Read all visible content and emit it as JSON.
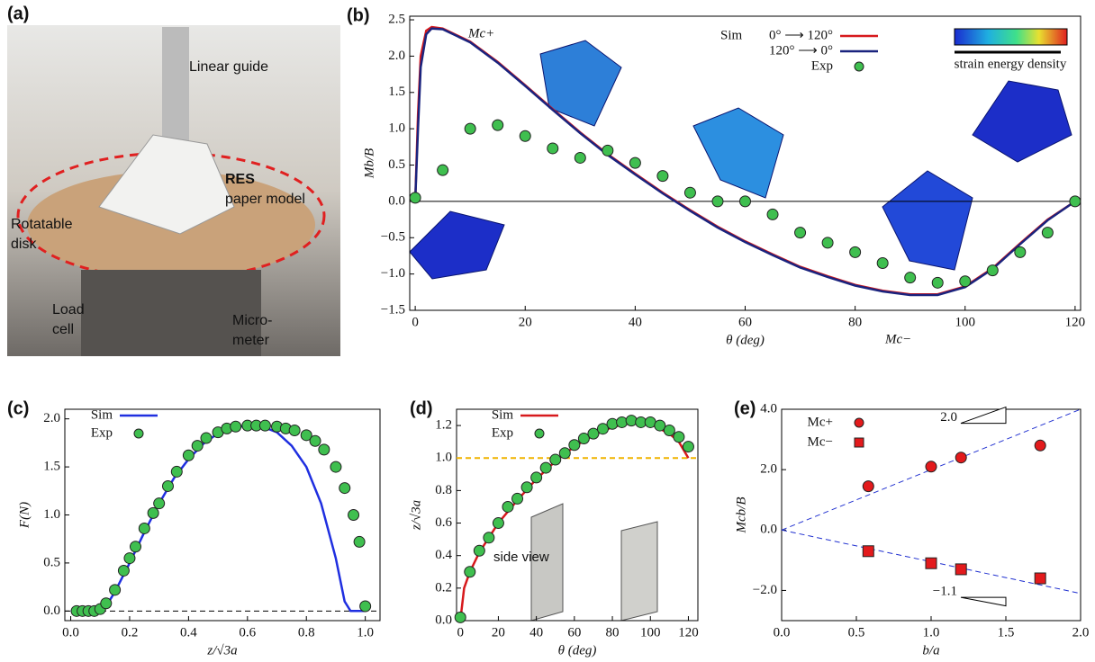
{
  "photo": {
    "panel": "(a)",
    "labels": [
      "Linear guide",
      "RES",
      "paper model",
      "Rotatable",
      "disk",
      "Load",
      "cell",
      "Micro-",
      "meter"
    ]
  },
  "chart_data": [
    {
      "type": "line",
      "panel": "(b)",
      "xlabel": "θ (deg)",
      "ylabel": "Mb/B",
      "xlim": [
        -1,
        121
      ],
      "ylim": [
        -1.5,
        2.55
      ],
      "xticks": [
        0,
        20,
        40,
        60,
        80,
        100,
        120
      ],
      "yticks": [
        {
          "value": -1.5,
          "label": "−1.5"
        },
        {
          "value": -1,
          "label": "−1.0"
        },
        {
          "value": -0.5,
          "label": "−0.5"
        },
        {
          "value": 0,
          "label": "0.0"
        },
        {
          "value": 0.5,
          "label": "0.5"
        },
        {
          "value": 1,
          "label": "1.0"
        },
        {
          "value": 1.5,
          "label": "1.5"
        },
        {
          "value": 2,
          "label": "2.0"
        },
        {
          "value": 2.5,
          "label": "2.5"
        }
      ],
      "hline": {
        "value": 0,
        "color": "#000000",
        "style": "solid"
      },
      "sim_label": "Sim",
      "colorbar_label": "strain energy density",
      "annotations": [
        "Mc+",
        "Mc−"
      ],
      "series": [
        {
          "name": "0° ⟶ 120°",
          "color": "#d7191c",
          "x": [
            0,
            0.5,
            1,
            2,
            3,
            5,
            10,
            15,
            20,
            25,
            30,
            35,
            40,
            45,
            50,
            55,
            60,
            65,
            70,
            75,
            80,
            85,
            90,
            95,
            100,
            105,
            110,
            115,
            120
          ],
          "values": [
            0,
            1.2,
            2.0,
            2.35,
            2.4,
            2.38,
            2.2,
            1.92,
            1.6,
            1.27,
            0.95,
            0.65,
            0.38,
            0.12,
            -0.12,
            -0.35,
            -0.55,
            -0.73,
            -0.9,
            -1.03,
            -1.15,
            -1.23,
            -1.28,
            -1.28,
            -1.17,
            -0.92,
            -0.58,
            -0.25,
            0
          ]
        },
        {
          "name": "120° ⟶ 0°",
          "color": "#1a237e",
          "x": [
            0,
            0.5,
            1,
            2,
            3,
            5,
            10,
            15,
            20,
            25,
            30,
            35,
            40,
            45,
            50,
            55,
            60,
            65,
            70,
            75,
            80,
            85,
            90,
            95,
            100,
            105,
            110,
            115,
            120
          ],
          "values": [
            0,
            1.0,
            1.85,
            2.3,
            2.38,
            2.37,
            2.19,
            1.91,
            1.59,
            1.26,
            0.94,
            0.64,
            0.37,
            0.11,
            -0.13,
            -0.36,
            -0.56,
            -0.74,
            -0.91,
            -1.04,
            -1.16,
            -1.24,
            -1.29,
            -1.29,
            -1.18,
            -0.93,
            -0.59,
            -0.26,
            0
          ]
        },
        {
          "name": "Exp",
          "color": "#3fbf4f",
          "marker": "circle",
          "x": [
            0,
            5,
            10,
            15,
            20,
            25,
            30,
            35,
            40,
            45,
            50,
            55,
            60,
            65,
            70,
            75,
            80,
            85,
            90,
            95,
            100,
            105,
            110,
            115,
            120
          ],
          "values": [
            0.05,
            0.43,
            1.0,
            1.05,
            0.9,
            0.73,
            0.6,
            0.7,
            0.53,
            0.35,
            0.12,
            0.0,
            0.0,
            -0.18,
            -0.43,
            -0.57,
            -0.7,
            -0.85,
            -1.05,
            -1.12,
            -1.1,
            -0.95,
            -0.7,
            -0.43,
            0.0
          ]
        }
      ]
    },
    {
      "type": "line",
      "panel": "(c)",
      "xlabel": "z/√3a",
      "ylabel": "F(N)",
      "xlim": [
        -0.02,
        1.05
      ],
      "ylim": [
        -0.1,
        2.1
      ],
      "xticks": [
        {
          "value": 0,
          "label": "0.0"
        },
        0.2,
        0.4,
        0.6,
        0.8,
        {
          "value": 1,
          "label": "1.0"
        }
      ],
      "yticks": [
        {
          "value": 0,
          "label": "0.0"
        },
        0.5,
        {
          "value": 1,
          "label": "1.0"
        },
        1.5,
        {
          "value": 2,
          "label": "2.0"
        }
      ],
      "hline": {
        "value": 0,
        "color": "#000000",
        "style": "dashed"
      },
      "series": [
        {
          "name": "Sim",
          "color": "#1f2fe0",
          "x": [
            0,
            0.1,
            0.12,
            0.15,
            0.2,
            0.25,
            0.3,
            0.35,
            0.4,
            0.45,
            0.5,
            0.55,
            0.6,
            0.65,
            0.7,
            0.75,
            0.8,
            0.85,
            0.9,
            0.93,
            0.95,
            1.0
          ],
          "values": [
            0,
            0,
            0.05,
            0.2,
            0.5,
            0.82,
            1.12,
            1.38,
            1.58,
            1.74,
            1.85,
            1.91,
            1.93,
            1.92,
            1.86,
            1.72,
            1.5,
            1.12,
            0.55,
            0.1,
            0,
            0
          ]
        },
        {
          "name": "Exp",
          "color": "#3fbf4f",
          "marker": "circle",
          "x": [
            0.02,
            0.04,
            0.06,
            0.08,
            0.1,
            0.12,
            0.15,
            0.18,
            0.2,
            0.22,
            0.25,
            0.28,
            0.3,
            0.33,
            0.36,
            0.4,
            0.43,
            0.46,
            0.5,
            0.53,
            0.56,
            0.6,
            0.63,
            0.66,
            0.7,
            0.73,
            0.76,
            0.8,
            0.83,
            0.86,
            0.9,
            0.93,
            0.96,
            0.98,
            1.0
          ],
          "values": [
            0,
            0,
            0,
            0,
            0.02,
            0.08,
            0.22,
            0.42,
            0.55,
            0.67,
            0.86,
            1.02,
            1.12,
            1.3,
            1.45,
            1.62,
            1.72,
            1.8,
            1.86,
            1.9,
            1.92,
            1.93,
            1.93,
            1.93,
            1.92,
            1.9,
            1.88,
            1.83,
            1.77,
            1.68,
            1.5,
            1.28,
            1.0,
            0.72,
            0.05
          ]
        }
      ]
    },
    {
      "type": "line",
      "panel": "(d)",
      "xlabel": "θ (deg)",
      "ylabel": "z/√3a",
      "xlim": [
        -2,
        125
      ],
      "ylim": [
        0,
        1.3
      ],
      "xticks": [
        0,
        20,
        40,
        60,
        80,
        100,
        120
      ],
      "yticks": [
        {
          "value": 0,
          "label": "0.0"
        },
        0.2,
        0.4,
        0.6,
        0.8,
        {
          "value": 1,
          "label": "1.0"
        },
        1.2
      ],
      "hline": {
        "value": 1,
        "color": "#f0b400",
        "style": "dashed"
      },
      "annotations": [
        "side view"
      ],
      "series": [
        {
          "name": "Sim",
          "color": "#d7191c",
          "x": [
            0,
            2,
            5,
            10,
            20,
            30,
            40,
            50,
            60,
            70,
            80,
            90,
            100,
            110,
            115,
            120
          ],
          "values": [
            0,
            0.2,
            0.3,
            0.42,
            0.6,
            0.74,
            0.87,
            0.98,
            1.07,
            1.14,
            1.19,
            1.22,
            1.21,
            1.15,
            1.1,
            1.0
          ]
        },
        {
          "name": "Exp",
          "color": "#3fbf4f",
          "marker": "circle",
          "x": [
            0,
            5,
            10,
            15,
            20,
            25,
            30,
            35,
            40,
            45,
            50,
            55,
            60,
            65,
            70,
            75,
            80,
            85,
            90,
            95,
            100,
            105,
            110,
            115,
            120
          ],
          "values": [
            0.02,
            0.3,
            0.43,
            0.51,
            0.6,
            0.7,
            0.75,
            0.82,
            0.88,
            0.94,
            0.99,
            1.03,
            1.08,
            1.12,
            1.15,
            1.18,
            1.21,
            1.22,
            1.23,
            1.22,
            1.22,
            1.2,
            1.17,
            1.13,
            1.07
          ]
        }
      ]
    },
    {
      "type": "scatter",
      "panel": "(e)",
      "xlabel": "b/a",
      "ylabel": "Mcb/B",
      "xlim": [
        0,
        2
      ],
      "ylim": [
        -3,
        4
      ],
      "xticks": [
        {
          "value": 0,
          "label": "0.0"
        },
        0.5,
        {
          "value": 1,
          "label": "1.0"
        },
        1.5,
        {
          "value": 2,
          "label": "2.0"
        }
      ],
      "yticks": [
        {
          "value": -2,
          "label": "−2.0"
        },
        {
          "value": 0,
          "label": "0.0"
        },
        {
          "value": 2,
          "label": "2.0"
        },
        {
          "value": 4,
          "label": "4.0"
        }
      ],
      "slope_labels": [
        {
          "value": 2.0,
          "label": "2.0"
        },
        {
          "value": -1.05,
          "label": "−1.1"
        }
      ],
      "series": [
        {
          "name": "Mc+",
          "color": "#e31a1c",
          "marker": "circle",
          "x": [
            0.58,
            1.0,
            1.2,
            1.73
          ],
          "values": [
            1.45,
            2.1,
            2.4,
            2.8
          ]
        },
        {
          "name": "Mc−",
          "color": "#e31a1c",
          "marker": "square",
          "x": [
            0.58,
            1.0,
            1.2,
            1.73
          ],
          "values": [
            -0.7,
            -1.1,
            -1.3,
            -1.6
          ]
        }
      ]
    }
  ]
}
